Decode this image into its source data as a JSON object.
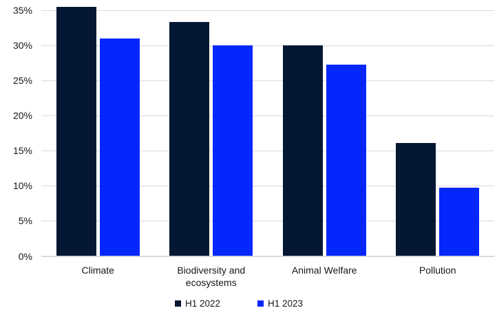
{
  "chart_data": {
    "type": "bar",
    "title": "",
    "xlabel": "",
    "ylabel": "",
    "categories": [
      "Climate",
      "Biodiversity and ecosystems",
      "Animal Welfare",
      "Pollution"
    ],
    "series": [
      {
        "name": "H1 2022",
        "color": "#041733",
        "values": [
          35.5,
          33.3,
          30.0,
          16.1
        ]
      },
      {
        "name": "H1 2023",
        "color": "#0527fb",
        "values": [
          31.0,
          30.0,
          27.3,
          9.7
        ]
      }
    ],
    "y_axis": {
      "min": 0,
      "max": 35,
      "step": 5,
      "tick_labels": [
        "0%",
        "5%",
        "10%",
        "15%",
        "20%",
        "25%",
        "30%",
        "35%"
      ]
    },
    "ylim": [
      0,
      35
    ],
    "grid": true,
    "legend_position": "bottom"
  },
  "colors": {
    "background": "#ffffff",
    "gridline": "#d9d9d9",
    "text": "#161616"
  }
}
